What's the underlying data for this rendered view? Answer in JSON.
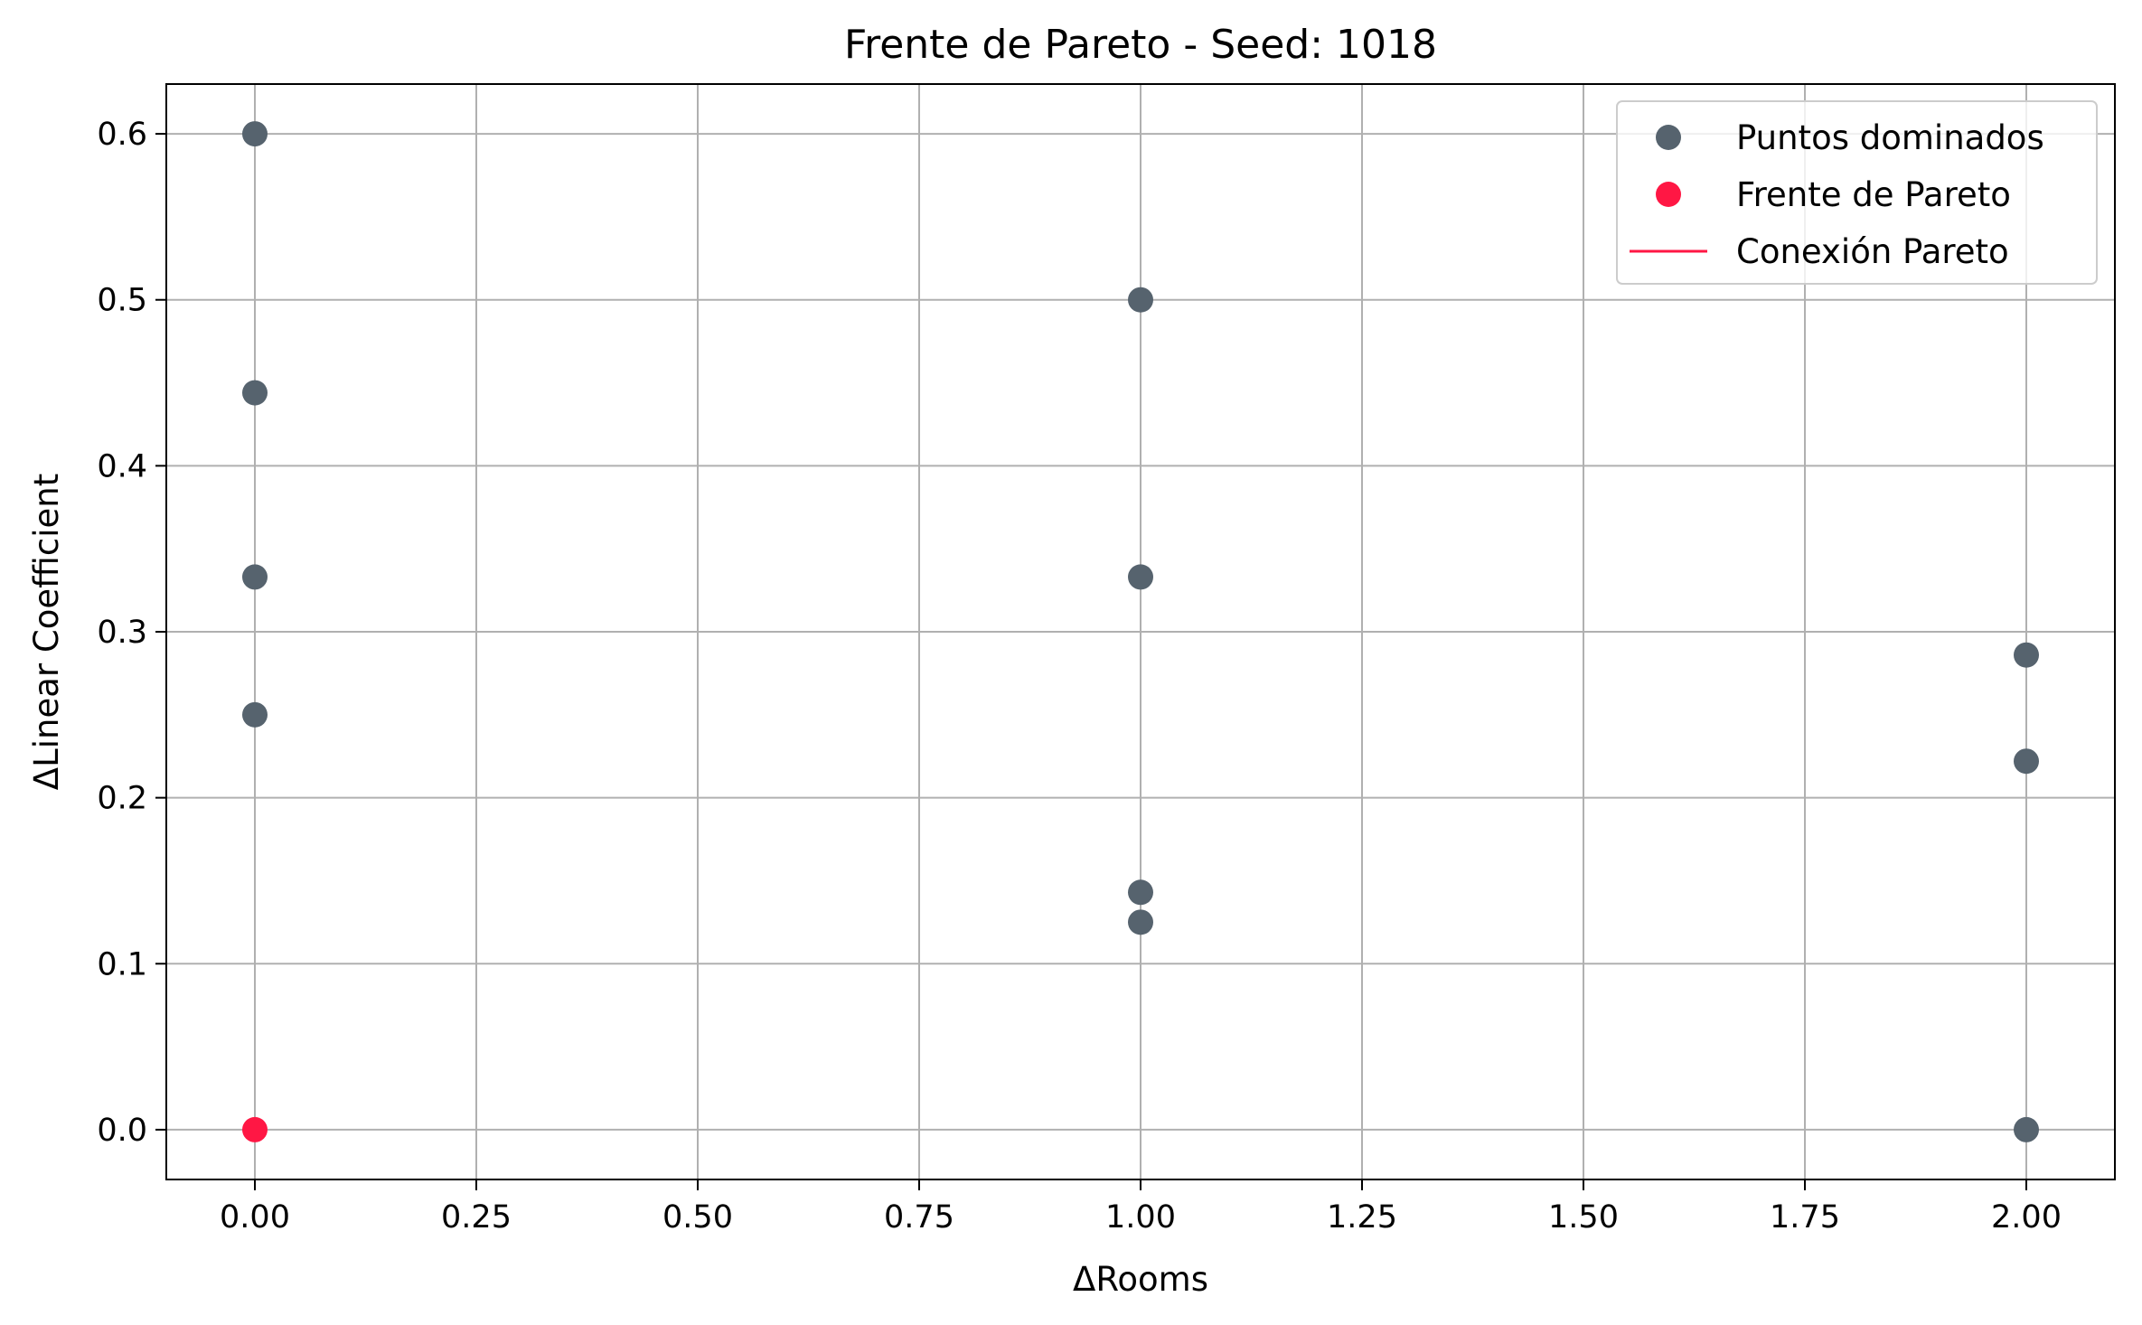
{
  "chart_data": {
    "type": "scatter",
    "title": "Frente de Pareto - Seed: 1018",
    "xlabel": "ΔRooms",
    "ylabel": "ΔLinear Coefficient",
    "xlim": [
      -0.1,
      2.1
    ],
    "ylim": [
      -0.03,
      0.63
    ],
    "xticks": [
      0.0,
      0.25,
      0.5,
      0.75,
      1.0,
      1.25,
      1.5,
      1.75,
      2.0
    ],
    "xtick_labels": [
      "0.00",
      "0.25",
      "0.50",
      "0.75",
      "1.00",
      "1.25",
      "1.50",
      "1.75",
      "2.00"
    ],
    "yticks": [
      0.0,
      0.1,
      0.2,
      0.3,
      0.4,
      0.5,
      0.6
    ],
    "ytick_labels": [
      "0.0",
      "0.1",
      "0.2",
      "0.3",
      "0.4",
      "0.5",
      "0.6"
    ],
    "grid": true,
    "legend_position": "top-right",
    "series": [
      {
        "name": "Puntos dominados",
        "kind": "scatter",
        "color": "#56636e",
        "points": [
          {
            "x": 0,
            "y": 0.6
          },
          {
            "x": 0,
            "y": 0.444
          },
          {
            "x": 0,
            "y": 0.333
          },
          {
            "x": 0,
            "y": 0.25
          },
          {
            "x": 1,
            "y": 0.5
          },
          {
            "x": 1,
            "y": 0.333
          },
          {
            "x": 1,
            "y": 0.143
          },
          {
            "x": 1,
            "y": 0.125
          },
          {
            "x": 2,
            "y": 0.286
          },
          {
            "x": 2,
            "y": 0.222
          },
          {
            "x": 2,
            "y": 0.0
          }
        ]
      },
      {
        "name": "Frente de Pareto",
        "kind": "scatter",
        "color": "#ff1744",
        "points": [
          {
            "x": 0,
            "y": 0.0
          }
        ]
      },
      {
        "name": "Conexión Pareto",
        "kind": "line",
        "color": "#ff1744",
        "points": [
          {
            "x": 0,
            "y": 0.0
          }
        ]
      }
    ]
  }
}
